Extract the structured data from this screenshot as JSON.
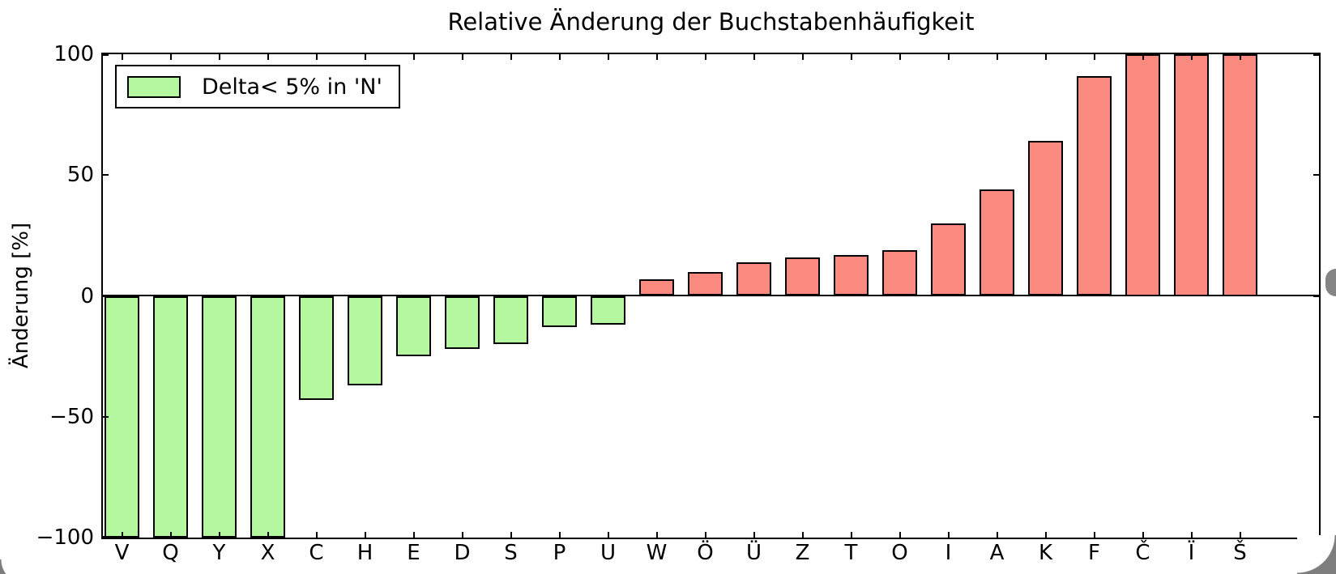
{
  "chart_data": {
    "type": "bar",
    "title": "Relative Änderung der Buchstabenhäufigkeit",
    "ylabel": "Änderung [%]",
    "xlabel": "",
    "categories": [
      "V",
      "Q",
      "Y",
      "X",
      "C",
      "H",
      "E",
      "D",
      "S",
      "P",
      "U",
      "W",
      "Ö",
      "Ü",
      "Z",
      "T",
      "O",
      "I",
      "A",
      "K",
      "F",
      "Č",
      "Ï",
      "Š"
    ],
    "values": [
      -100,
      -100,
      -100,
      -100,
      -43,
      -37,
      -25,
      -22,
      -20,
      -13,
      -12,
      7,
      10,
      14,
      16,
      17,
      19,
      30,
      44,
      64,
      91,
      100,
      100,
      100
    ],
    "bar_colors": [
      "green",
      "green",
      "green",
      "green",
      "green",
      "green",
      "green",
      "green",
      "green",
      "green",
      "green",
      "red",
      "red",
      "red",
      "red",
      "red",
      "red",
      "red",
      "red",
      "red",
      "red",
      "red",
      "red",
      "red"
    ],
    "color_map": {
      "green": "#b5f79e",
      "red": "#fa8a80"
    },
    "edge_color": "#000000",
    "ylim": [
      -100,
      100
    ],
    "ytick_values": [
      100,
      50,
      0,
      -50,
      -100
    ],
    "ytick_labels": [
      "100",
      "50",
      "0",
      "−50",
      "−100"
    ],
    "values_clipped_to_ylim": [
      "V",
      "Q",
      "Y",
      "X",
      "Č",
      "Ï",
      "Š"
    ],
    "grid": false,
    "legend": {
      "position": "upper left",
      "entries": [
        {
          "label": "Delta< 5% in 'N'",
          "color": "#b5f79e"
        }
      ]
    }
  }
}
